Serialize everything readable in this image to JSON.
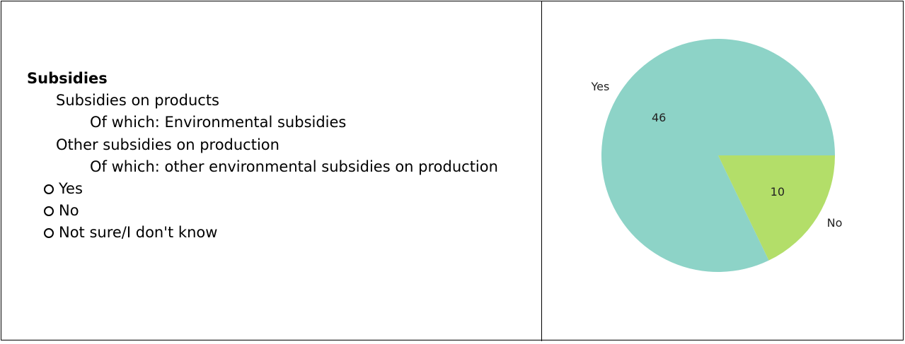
{
  "question": {
    "heading": "Subsidies",
    "items": [
      {
        "text": "Subsidies on products",
        "level": 1
      },
      {
        "text": "Of which: Environmental subsidies",
        "level": 2
      },
      {
        "text": "Other subsidies on production",
        "level": 1
      },
      {
        "text": "Of which: other environmental subsidies on production",
        "level": 2
      }
    ],
    "options": [
      {
        "label": "Yes"
      },
      {
        "label": "No"
      },
      {
        "label": "Not sure/I don't know"
      }
    ]
  },
  "chart_data": {
    "type": "pie",
    "categories": [
      "Yes",
      "No"
    ],
    "values": [
      46,
      10
    ],
    "colors": [
      "#8dd3c7",
      "#b3de69"
    ],
    "start_angle_deg": 0,
    "direction": "counterclockwise",
    "title": ""
  }
}
